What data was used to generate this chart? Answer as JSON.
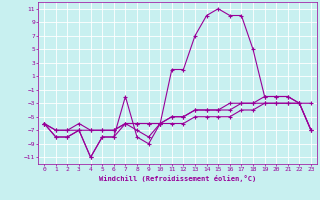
{
  "xlabel": "Windchill (Refroidissement éolien,°C)",
  "background_color": "#c8f0f0",
  "grid_color": "#ffffff",
  "line_color": "#990099",
  "x_hours": [
    0,
    1,
    2,
    3,
    4,
    5,
    6,
    7,
    8,
    9,
    10,
    11,
    12,
    13,
    14,
    15,
    16,
    17,
    18,
    19,
    20,
    21,
    22,
    23
  ],
  "series": {
    "windchill": [
      -6,
      -8,
      -8,
      -7,
      -11,
      -8,
      -8,
      -2,
      -8,
      -9,
      -6,
      2,
      2,
      7,
      10,
      11,
      10,
      10,
      5,
      -2,
      -2,
      -2,
      -3,
      -3
    ],
    "temp": [
      -6,
      -8,
      -8,
      -7,
      -11,
      -8,
      -8,
      -6,
      -7,
      -8,
      -6,
      -6,
      -6,
      -5,
      -5,
      -5,
      -5,
      -4,
      -4,
      -3,
      -3,
      -3,
      -3,
      -7
    ],
    "line3": [
      -6,
      -7,
      -7,
      -7,
      -7,
      -7,
      -7,
      -6,
      -6,
      -6,
      -6,
      -5,
      -5,
      -4,
      -4,
      -4,
      -4,
      -3,
      -3,
      -3,
      -3,
      -3,
      -3,
      -7
    ],
    "line4": [
      -6,
      -7,
      -7,
      -6,
      -7,
      -7,
      -7,
      -6,
      -6,
      -6,
      -6,
      -5,
      -5,
      -4,
      -4,
      -4,
      -3,
      -3,
      -3,
      -2,
      -2,
      -2,
      -3,
      -7
    ]
  },
  "ylim": [
    -12,
    12
  ],
  "yticks": [
    -11,
    -9,
    -7,
    -5,
    -3,
    -1,
    1,
    3,
    5,
    7,
    9,
    11
  ],
  "xlim": [
    -0.5,
    23.5
  ],
  "xticks": [
    0,
    1,
    2,
    3,
    4,
    5,
    6,
    7,
    8,
    9,
    10,
    11,
    12,
    13,
    14,
    15,
    16,
    17,
    18,
    19,
    20,
    21,
    22,
    23
  ],
  "tick_fontsize": 4.5,
  "xlabel_fontsize": 5,
  "linewidth": 0.8,
  "markersize": 3
}
